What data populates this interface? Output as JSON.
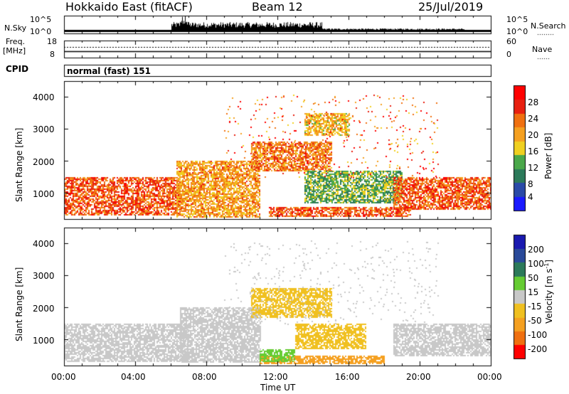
{
  "header": {
    "station": "Hokkaido East (fitACF)",
    "beam": "Beam 12",
    "date": "25/Jul/2019"
  },
  "nsky_panel": {
    "left_label": "N.Sky",
    "left_ticks": [
      "10^5",
      "10^0"
    ],
    "right_label": "N.Search",
    "right_ticks": [
      "10^5",
      "10^0"
    ]
  },
  "freq_panel": {
    "left_label_1": "Freq.",
    "left_label_2": "[MHz]",
    "left_ticks": [
      "18",
      "8"
    ],
    "right_label": "Nave",
    "right_ticks": [
      "60",
      "0"
    ]
  },
  "cpid": {
    "label": "CPID",
    "value": "normal (fast) 151"
  },
  "colorbars": {
    "power": {
      "title": "Power [dB]",
      "ticks": [
        "4",
        "8",
        "12",
        "16",
        "20",
        "24",
        "28"
      ],
      "colors": [
        "#1a1aff",
        "#2a4aa8",
        "#2c7a5a",
        "#4aa84a",
        "#f0d020",
        "#f5a020",
        "#f07010",
        "#e82010",
        "#ff0000"
      ]
    },
    "velocity": {
      "title_prefix": "Velocity [m s",
      "title_sup": "-1",
      "title_suffix": "]",
      "ticks": [
        "200",
        "100",
        "50",
        "15",
        "-15",
        "-50",
        "-100",
        "-200"
      ],
      "colors": [
        "#1a1ab0",
        "#2a4a9a",
        "#2c7a5a",
        "#66cc33",
        "#c8c8c8",
        "#f0c020",
        "#f5a020",
        "#f07010",
        "#ff0000"
      ]
    }
  },
  "chart_data": [
    {
      "type": "heatmap",
      "title": "",
      "xlabel": "Time UT",
      "ylabel": "Slant Range [km]",
      "xlim": [
        "00:00",
        "00:00"
      ],
      "xticks": [
        "00:00",
        "04:00",
        "08:00",
        "12:00",
        "16:00",
        "20:00",
        "00:00"
      ],
      "ylim": [
        180,
        4500
      ],
      "yticks": [
        1000,
        2000,
        3000,
        4000
      ],
      "colorbar_label": "Power [dB]",
      "colorbar_ticks": [
        4,
        8,
        12,
        16,
        20,
        24,
        28
      ],
      "regions": [
        {
          "x": [
            0.0,
            6.5
          ],
          "y": [
            300,
            1500
          ],
          "value": 26
        },
        {
          "x": [
            6.3,
            11.0
          ],
          "y": [
            250,
            2000
          ],
          "value": 22
        },
        {
          "x": [
            10.5,
            15.0
          ],
          "y": [
            1700,
            2600
          ],
          "value": 24
        },
        {
          "x": [
            13.5,
            16.0
          ],
          "y": [
            2800,
            3500
          ],
          "value": 20
        },
        {
          "x": [
            13.5,
            19.0
          ],
          "y": [
            700,
            1700
          ],
          "value": 14
        },
        {
          "x": [
            11.5,
            19.5
          ],
          "y": [
            250,
            550
          ],
          "value": 26
        },
        {
          "x": [
            18.5,
            24.0
          ],
          "y": [
            500,
            1500
          ],
          "value": 26
        }
      ]
    },
    {
      "type": "heatmap",
      "title": "",
      "xlabel": "Time UT",
      "ylabel": "Slant Range [km]",
      "xlim": [
        "00:00",
        "00:00"
      ],
      "xticks": [
        "00:00",
        "04:00",
        "08:00",
        "12:00",
        "16:00",
        "20:00",
        "00:00"
      ],
      "ylim": [
        180,
        4500
      ],
      "yticks": [
        1000,
        2000,
        3000,
        4000
      ],
      "colorbar_label": "Velocity [m s-1]",
      "colorbar_ticks": [
        200,
        100,
        50,
        15,
        -15,
        -50,
        -100,
        -200
      ],
      "regions": [
        {
          "x": [
            0.0,
            7.0
          ],
          "y": [
            300,
            1500
          ],
          "value": 0
        },
        {
          "x": [
            6.5,
            11.0
          ],
          "y": [
            300,
            2000
          ],
          "value": 0
        },
        {
          "x": [
            10.5,
            15.0
          ],
          "y": [
            1700,
            2600
          ],
          "value": -40
        },
        {
          "x": [
            13.0,
            17.0
          ],
          "y": [
            700,
            1500
          ],
          "value": -40
        },
        {
          "x": [
            11.0,
            18.0
          ],
          "y": [
            250,
            500
          ],
          "value": -60
        },
        {
          "x": [
            11.0,
            13.0
          ],
          "y": [
            300,
            700
          ],
          "value": 40
        },
        {
          "x": [
            18.5,
            24.0
          ],
          "y": [
            500,
            1500
          ],
          "value": 0
        }
      ]
    }
  ]
}
